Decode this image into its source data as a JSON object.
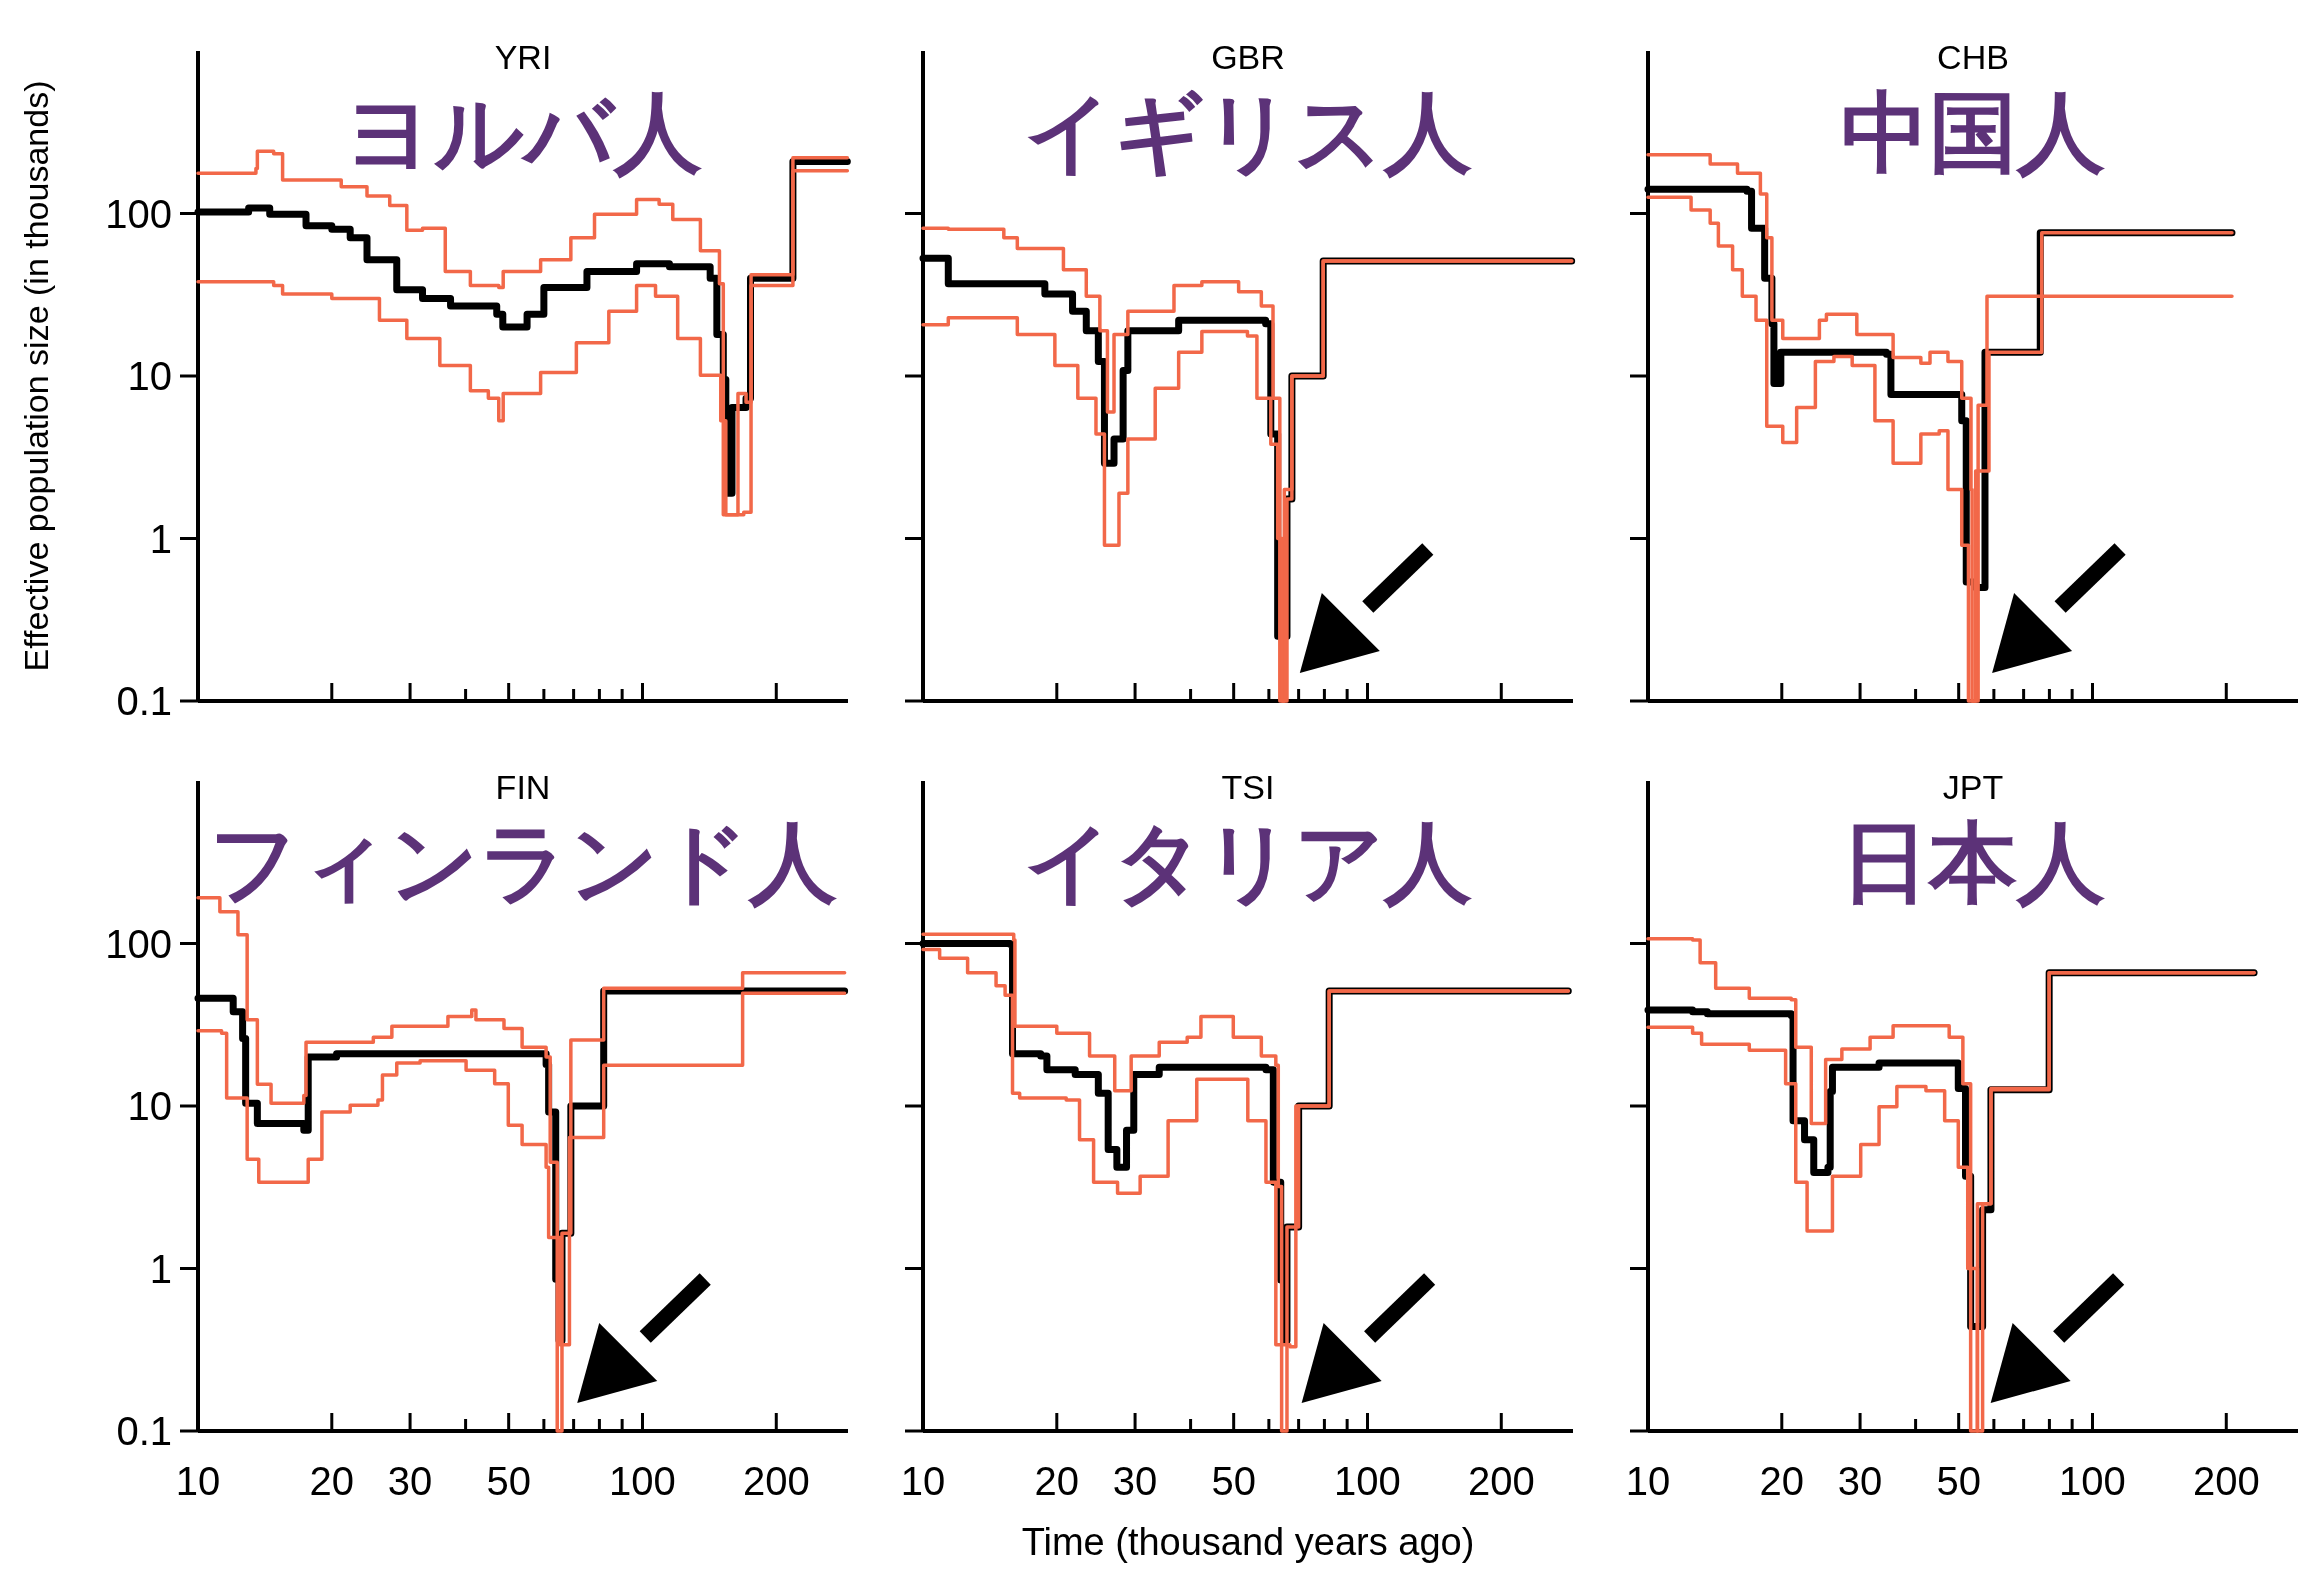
{
  "chart_data": [
    {
      "type": "step",
      "title": "YRI",
      "subtitle": "ヨルバ人",
      "ylabel": "Effective population size (in thousands)",
      "log": "xy",
      "xlim": [
        10,
        290
      ],
      "ylim": [
        0.1,
        1000
      ],
      "xticks": [
        10,
        20,
        30,
        {
          "value": 40,
          "label": null
        },
        50,
        {
          "value": 60,
          "label": null
        },
        {
          "value": 70,
          "label": null
        },
        {
          "value": 80,
          "label": null
        },
        {
          "value": 90,
          "label": null
        },
        100,
        200
      ],
      "yticks": [
        0.1,
        1,
        10,
        100
      ],
      "tick_labels": "y",
      "series": [
        {
          "color": "#000000",
          "x": [
            10,
            13,
            14.5,
            17.5,
            20,
            22,
            24,
            28,
            32,
            37,
            47,
            48.5,
            51,
            55,
            60,
            75,
            97,
            115,
            142,
            147,
            152,
            154,
            159,
            171,
            175,
            218,
            289
          ],
          "values": [
            102,
            108,
            99,
            84,
            80,
            71,
            52,
            34,
            30,
            27,
            24,
            20,
            20,
            24,
            35,
            44,
            49,
            47,
            40,
            18,
            9.5,
            1.9,
            6.4,
            7.3,
            40,
            209,
            209
          ]
        },
        {
          "color": "#f26849",
          "x": [
            10,
            13.5,
            13.6,
            14.8,
            15.5,
            18.3,
            21,
            24,
            27,
            29.5,
            32,
            36,
            41,
            47.5,
            48.6,
            59,
            69,
            78,
            97,
            109,
            117,
            135,
            149,
            152,
            169,
            175.5,
            218,
            289
          ],
          "values": [
            177,
            189,
            242,
            233,
            161,
            161,
            146,
            128,
            112,
            79,
            81,
            44,
            36,
            35,
            44,
            52,
            71,
            99,
            122,
            114,
            92,
            59,
            37,
            1.4,
            1.45,
            42,
            220,
            220
          ]
        },
        {
          "color": "#f26849",
          "x": [
            10,
            14.8,
            15.5,
            20,
            25.6,
            29.5,
            35,
            41,
            45,
            47.5,
            48.6,
            59,
            71,
            84,
            97,
            107,
            120,
            135,
            150,
            154,
            164,
            171,
            175.5,
            218,
            289
          ],
          "values": [
            38,
            36,
            32,
            30,
            22,
            17,
            11.6,
            8.1,
            7.3,
            5.3,
            7.8,
            10.5,
            16,
            25,
            36,
            31,
            17,
            10.1,
            5.3,
            1.4,
            7.8,
            6.9,
            36,
            183,
            183
          ]
        }
      ]
    },
    {
      "type": "step",
      "title": "GBR",
      "subtitle": "イギリス人",
      "log": "xy",
      "xlim": [
        10,
        290
      ],
      "ylim": [
        0.1,
        1000
      ],
      "xticks": [
        10,
        20,
        30,
        {
          "value": 40,
          "label": null
        },
        50,
        {
          "value": 60,
          "label": null
        },
        {
          "value": 70,
          "label": null
        },
        {
          "value": 80,
          "label": null
        },
        {
          "value": 90,
          "label": null
        },
        100,
        200
      ],
      "yticks": [
        0.1,
        1,
        10,
        100
      ],
      "tick_labels": false,
      "series": [
        {
          "color": "#000000",
          "x": [
            10,
            11.4,
            16.3,
            18.8,
            21.7,
            23.3,
            24.8,
            25.6,
            26.9,
            28.2,
            28.9,
            37.6,
            59,
            60.6,
            62.8,
            65.9,
            67.6,
            79.5,
            288
          ],
          "values": [
            53,
            37,
            37,
            32,
            25,
            19,
            12.3,
            2.9,
            4.1,
            10.8,
            19,
            22,
            21,
            4.4,
            0.25,
            1.75,
            10,
            51,
            51
          ]
        },
        {
          "color": "#f26849",
          "x": [
            10,
            11.4,
            15.2,
            16.3,
            20.7,
            23.3,
            25,
            26,
            26.9,
            28.9,
            36.7,
            42.4,
            51.3,
            57.7,
            61.3,
            63.5,
            65,
            67.6,
            79.5,
            288
          ],
          "values": [
            81,
            80,
            71,
            61,
            45,
            31,
            19,
            6,
            18,
            25,
            36,
            38,
            33,
            27,
            7.3,
            0.1,
            2,
            10,
            51,
            51
          ]
        },
        {
          "color": "#f26849",
          "x": [
            10,
            11.4,
            14.8,
            16.3,
            19.8,
            22.3,
            24.5,
            25.6,
            27.6,
            28.9,
            33.3,
            37.6,
            42.4,
            53.7,
            56.4,
            60.6,
            62.8,
            64.3,
            65.9,
            67.6,
            79.5,
            288
          ],
          "values": [
            20.7,
            22.8,
            22.8,
            18,
            11.6,
            7.3,
            4.4,
            0.91,
            1.9,
            4.1,
            8.4,
            14,
            18.8,
            17.6,
            7.3,
            3.8,
            1.0,
            0.1,
            1.75,
            10,
            51,
            51
          ]
        }
      ]
    },
    {
      "type": "step",
      "title": "CHB",
      "subtitle": "中国人",
      "log": "xy",
      "xlim": [
        10,
        290
      ],
      "ylim": [
        0.1,
        1000
      ],
      "xticks": [
        10,
        20,
        30,
        {
          "value": 40,
          "label": null
        },
        50,
        {
          "value": 60,
          "label": null
        },
        {
          "value": 70,
          "label": null
        },
        {
          "value": 80,
          "label": null
        },
        {
          "value": 90,
          "label": null
        },
        100,
        200
      ],
      "yticks": [
        0.1,
        1,
        10,
        100
      ],
      "tick_labels": false,
      "series": [
        {
          "color": "#000000",
          "x": [
            10,
            16.7,
            17.1,
            18.3,
            19,
            19.2,
            19.9,
            34.4,
            35.2,
            48.5,
            50.8,
            52,
            54.6,
            57.3,
            76.3,
            206
          ],
          "values": [
            141,
            137,
            81,
            40,
            21,
            9,
            14,
            13.6,
            7.7,
            7.7,
            5.3,
            0.54,
            0.5,
            14,
            76,
            76
          ]
        },
        {
          "color": "#f26849",
          "x": [
            10,
            13.8,
            15.9,
            17.9,
            18.5,
            19,
            20.1,
            24.3,
            25.2,
            29.5,
            35.6,
            41.1,
            43.1,
            47.3,
            50.8,
            53.3,
            53.6,
            55.3,
            57.9,
            206
          ],
          "values": [
            230,
            202,
            177,
            132,
            71,
            22,
            17,
            22,
            24,
            18,
            13,
            12,
            14,
            12.3,
            7.3,
            2,
            0.1,
            6.6,
            31,
            31
          ]
        },
        {
          "color": "#f26849",
          "x": [
            10,
            12.5,
            13.8,
            14.4,
            15.5,
            16.3,
            17.5,
            18.5,
            20.1,
            21.6,
            23.8,
            26.2,
            28.8,
            32.4,
            35.6,
            38.2,
            41.1,
            45.2,
            47.3,
            50.8,
            52.6,
            54.6,
            58.5,
            76.9,
            206
          ],
          "values": [
            126,
            105,
            87,
            63,
            45,
            31,
            22,
            4.9,
            3.9,
            6.4,
            12.3,
            13.2,
            11.6,
            5.3,
            2.9,
            2.9,
            4.4,
            4.6,
            2,
            0.91,
            0.1,
            2.6,
            14,
            76,
            76
          ]
        }
      ]
    },
    {
      "type": "step",
      "title": "FIN",
      "subtitle": "フィンランド人",
      "log": "xy",
      "xlim": [
        10,
        290
      ],
      "ylim": [
        0.1,
        1000
      ],
      "xticks": [
        10,
        20,
        30,
        {
          "value": 40,
          "label": null
        },
        50,
        {
          "value": 60,
          "label": null
        },
        {
          "value": 70,
          "label": null
        },
        {
          "value": 80,
          "label": null
        },
        {
          "value": 90,
          "label": null
        },
        100,
        200
      ],
      "yticks": [
        0.1,
        1,
        10,
        100
      ],
      "series": [
        {
          "color": "#000000",
          "x": [
            10,
            12,
            12.6,
            12.8,
            13.6,
            17.3,
            17.7,
            20.5,
            42,
            60.7,
            61.5,
            63.8,
            64.9,
            65.9,
            69,
            81,
            81.8,
            285
          ],
          "values": [
            46,
            38,
            26,
            10.4,
            7.8,
            7.1,
            20,
            21,
            21,
            18,
            9.2,
            0.86,
            0.36,
            1.65,
            10,
            10,
            51,
            51
          ]
        },
        {
          "color": "#f26849",
          "x": [
            10,
            11.2,
            12.3,
            12.9,
            13.6,
            14.6,
            17.3,
            17.5,
            24.8,
            27.3,
            36.5,
            41.3,
            42.2,
            48.8,
            53.6,
            60.7,
            62,
            64.3,
            65.9,
            69,
            81.8,
            168,
            285
          ],
          "values": [
            191,
            157,
            113,
            34,
            13.6,
            10.4,
            11.6,
            24.7,
            26.5,
            31,
            35.5,
            39,
            34,
            30,
            23,
            20,
            4.5,
            0.1,
            1.65,
            25.5,
            53,
            66,
            66
          ]
        },
        {
          "color": "#f26849",
          "x": [
            10,
            11.3,
            11.6,
            12.9,
            13.7,
            16.9,
            17.7,
            19,
            22,
            25.4,
            26,
            28,
            31.6,
            40.1,
            46.5,
            49.9,
            53.6,
            60.7,
            61.5,
            65.2,
            68.5,
            81.8,
            168,
            285
          ],
          "values": [
            29,
            28,
            11.2,
            4.7,
            3.4,
            3.4,
            4.7,
            9.2,
            10.1,
            10.9,
            15.5,
            18.4,
            19,
            16.6,
            13.7,
            7.6,
            5.8,
            4.2,
            1.55,
            0.34,
            6.4,
            17.8,
            49.4,
            49.4
          ]
        }
      ]
    },
    {
      "type": "step",
      "title": "TSI",
      "subtitle": "イタリア人",
      "xlabel": "Time (thousand years ago)",
      "log": "xy",
      "xlim": [
        10,
        290
      ],
      "ylim": [
        0.1,
        1000
      ],
      "xticks": [
        10,
        20,
        30,
        {
          "value": 40,
          "label": null
        },
        50,
        {
          "value": 60,
          "label": null
        },
        {
          "value": 70,
          "label": null
        },
        {
          "value": 80,
          "label": null
        },
        {
          "value": 90,
          "label": null
        },
        100,
        200
      ],
      "yticks": [
        0.1,
        1,
        10,
        100
      ],
      "tick_labels": "x",
      "series": [
        {
          "color": "#000000",
          "x": [
            10,
            15.7,
            15.9,
            18.4,
            19,
            22,
            24.8,
            26.1,
            27.3,
            28.7,
            29.8,
            34,
            59.1,
            61.4,
            63.8,
            65.2,
            65.9,
            70,
            82,
            283
          ],
          "values": [
            100,
            99,
            21,
            20.3,
            16.7,
            15.6,
            12,
            5.4,
            4.2,
            7.1,
            15.6,
            17.3,
            16.7,
            3.4,
            0.85,
            0.36,
            1.8,
            10,
            51,
            51
          ]
        },
        {
          "color": "#f26849",
          "x": [
            10,
            16,
            16.1,
            20,
            23.7,
            27,
            29.4,
            34,
            39.3,
            42.2,
            47,
            49.9,
            57.7,
            62.2,
            63,
            64.1,
            65.9,
            70,
            82,
            283
          ],
          "values": [
            114,
            105,
            31,
            28,
            20.3,
            12.4,
            20.3,
            24.7,
            26.5,
            35.5,
            35.5,
            26.5,
            20.3,
            17.8,
            3.2,
            0.1,
            1.8,
            10,
            51,
            51
          ]
        },
        {
          "color": "#f26849",
          "x": [
            10,
            10.9,
            12.6,
            14.6,
            15.3,
            15.9,
            16.5,
            21,
            22.5,
            24.2,
            27.4,
            30.8,
            35.6,
            41.3,
            47.7,
            53.8,
            59.1,
            62.2,
            66.9,
            69,
            82,
            283
          ],
          "values": [
            92,
            81,
            66,
            55,
            48,
            12,
            11.2,
            10.9,
            6.2,
            3.4,
            2.9,
            3.7,
            8.1,
            14.6,
            14.6,
            8.1,
            3.4,
            0.34,
            0.33,
            10,
            51,
            51
          ]
        }
      ]
    },
    {
      "type": "step",
      "title": "JPT",
      "subtitle": "日本人",
      "log": "xy",
      "xlim": [
        10,
        290
      ],
      "ylim": [
        0.1,
        1000
      ],
      "xticks": [
        10,
        20,
        30,
        {
          "value": 40,
          "label": null
        },
        50,
        {
          "value": 60,
          "label": null
        },
        {
          "value": 70,
          "label": null
        },
        {
          "value": 80,
          "label": null
        },
        {
          "value": 90,
          "label": null
        },
        100,
        200
      ],
      "yticks": [
        0.1,
        1,
        10,
        100
      ],
      "tick_labels": "x",
      "series": [
        {
          "color": "#000000",
          "x": [
            10,
            12.6,
            13.6,
            21,
            21.2,
            22.5,
            23.6,
            25.4,
            25.7,
            26,
            33.1,
            48.8,
            49.9,
            51.8,
            53.2,
            56,
            56.6,
            59.1,
            79.9,
            231
          ],
          "values": [
            39,
            38,
            37,
            36,
            8.1,
            6.2,
            3.9,
            4.2,
            12.3,
            17.3,
            18.4,
            18.4,
            12.8,
            3.7,
            0.44,
            0.44,
            2.3,
            12.6,
            66,
            66
          ]
        },
        {
          "color": "#f26849",
          "x": [
            10,
            12.6,
            13.1,
            14.2,
            16.9,
            21,
            21.5,
            23.3,
            24.2,
            25.1,
            27.3,
            31.6,
            35.6,
            42.2,
            47.6,
            51.1,
            53.2,
            55.1,
            59.1,
            79.9,
            231
          ],
          "values": [
            107,
            105,
            76,
            53,
            46,
            45,
            23,
            7.8,
            7.8,
            19.3,
            22.4,
            26.5,
            31.2,
            31.2,
            26.5,
            13.7,
            0.1,
            2.5,
            12.8,
            66,
            66
          ]
        },
        {
          "color": "#f26849",
          "x": [
            10,
            12.6,
            13.2,
            16.9,
            20.4,
            21.5,
            22.8,
            24.8,
            26,
            30.1,
            33.1,
            36.3,
            42.2,
            46.5,
            49.9,
            52.4,
            55.1,
            56.6,
            59.1,
            79.9,
            231
          ],
          "values": [
            30.5,
            28,
            24,
            22,
            13.7,
            3.4,
            1.7,
            1.7,
            3.7,
            5.8,
            9.9,
            13.2,
            12.4,
            8.1,
            4.2,
            1,
            0.1,
            2.5,
            12.6,
            66,
            66
          ]
        }
      ]
    }
  ]
}
